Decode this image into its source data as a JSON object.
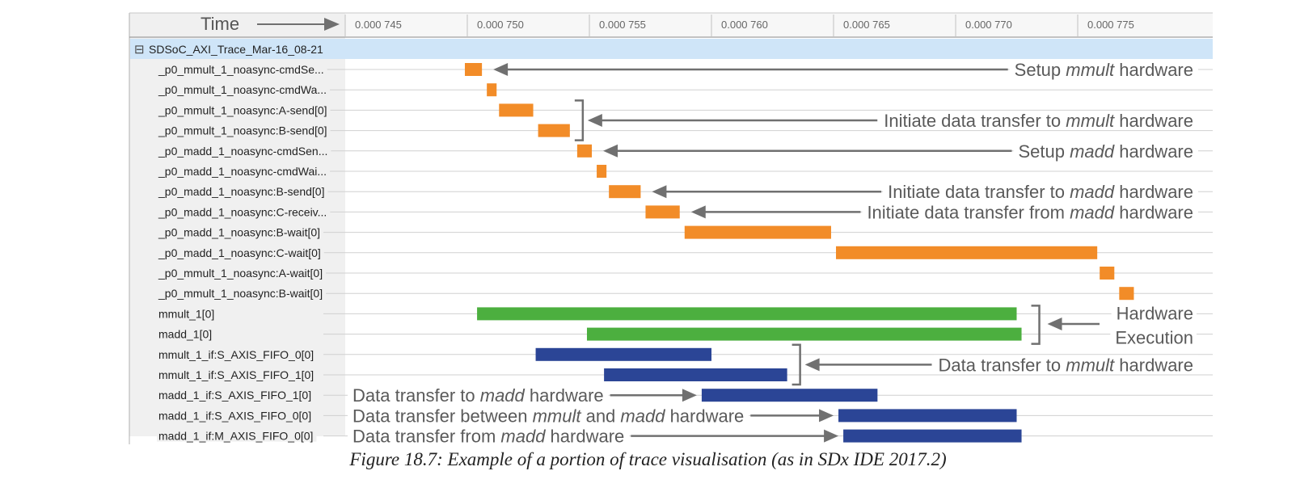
{
  "time_header": {
    "label": "Time",
    "ticks": [
      "0.000 745",
      "0.000 750",
      "0.000 755",
      "0.000 760",
      "0.000 765",
      "0.000 770",
      "0.000 775"
    ],
    "tick_values": [
      0.000745,
      0.00075,
      0.000755,
      0.00076,
      0.000765,
      0.00077,
      0.000775
    ]
  },
  "group": {
    "expander": "⊟",
    "label": "SDSoC_AXI_Trace_Mar-16_08-21"
  },
  "colors": {
    "software": "#F28C28",
    "hardware": "#4CAF3F",
    "dataflow": "#2B4596",
    "group_bg": "#CFE5F8",
    "label_bg": "#F0F0F0",
    "annotation": "#707070"
  },
  "rows": [
    {
      "label": "_p0_mmult_1_noasync-cmdSe...",
      "kind": "software",
      "start": 0.0007499,
      "end": 0.0007506
    },
    {
      "label": "_p0_mmult_1_noasync-cmdWa...",
      "kind": "software",
      "start": 0.0007508,
      "end": 0.0007512
    },
    {
      "label": "_p0_mmult_1_noasync:A-send[0]",
      "kind": "software",
      "start": 0.0007513,
      "end": 0.0007527
    },
    {
      "label": "_p0_mmult_1_noasync:B-send[0]",
      "kind": "software",
      "start": 0.0007529,
      "end": 0.0007542
    },
    {
      "label": "_p0_madd_1_noasync-cmdSen...",
      "kind": "software",
      "start": 0.0007545,
      "end": 0.0007551
    },
    {
      "label": "_p0_madd_1_noasync-cmdWai...",
      "kind": "software",
      "start": 0.0007553,
      "end": 0.0007557
    },
    {
      "label": "_p0_madd_1_noasync:B-send[0]",
      "kind": "software",
      "start": 0.0007558,
      "end": 0.0007571
    },
    {
      "label": "_p0_madd_1_noasync:C-receiv...",
      "kind": "software",
      "start": 0.0007573,
      "end": 0.0007587
    },
    {
      "label": "_p0_madd_1_noasync:B-wait[0]",
      "kind": "software",
      "start": 0.0007589,
      "end": 0.0007649
    },
    {
      "label": "_p0_madd_1_noasync:C-wait[0]",
      "kind": "software",
      "start": 0.0007651,
      "end": 0.0007758
    },
    {
      "label": "_p0_mmult_1_noasync:A-wait[0]",
      "kind": "software",
      "start": 0.0007759,
      "end": 0.0007765
    },
    {
      "label": "_p0_mmult_1_noasync:B-wait[0]",
      "kind": "software",
      "start": 0.0007767,
      "end": 0.0007773
    },
    {
      "label": "mmult_1[0]",
      "kind": "hardware",
      "start": 0.0007504,
      "end": 0.0007725
    },
    {
      "label": "madd_1[0]",
      "kind": "hardware",
      "start": 0.0007549,
      "end": 0.0007727
    },
    {
      "label": "mmult_1_if:S_AXIS_FIFO_0[0]",
      "kind": "dataflow",
      "start": 0.0007528,
      "end": 0.00076
    },
    {
      "label": "mmult_1_if:S_AXIS_FIFO_1[0]",
      "kind": "dataflow",
      "start": 0.0007556,
      "end": 0.0007631
    },
    {
      "label": "madd_1_if:S_AXIS_FIFO_1[0]",
      "kind": "dataflow",
      "start": 0.0007596,
      "end": 0.0007668
    },
    {
      "label": "madd_1_if:S_AXIS_FIFO_0[0]",
      "kind": "dataflow",
      "start": 0.0007652,
      "end": 0.0007725
    },
    {
      "label": "madd_1_if:M_AXIS_FIFO_0[0]",
      "kind": "dataflow",
      "start": 0.0007654,
      "end": 0.0007727
    }
  ],
  "annotations": [
    {
      "rows": [
        0
      ],
      "side": "right",
      "parts": [
        [
          "Setup ",
          false
        ],
        [
          "mmult",
          true
        ],
        [
          " hardware",
          false
        ]
      ]
    },
    {
      "rows": [
        2,
        3
      ],
      "side": "right",
      "parts": [
        [
          "Initiate data transfer to ",
          false
        ],
        [
          "mmult",
          true
        ],
        [
          " hardware",
          false
        ]
      ]
    },
    {
      "rows": [
        4
      ],
      "side": "right",
      "parts": [
        [
          "Setup ",
          false
        ],
        [
          "madd",
          true
        ],
        [
          " hardware",
          false
        ]
      ]
    },
    {
      "rows": [
        6
      ],
      "side": "right",
      "parts": [
        [
          "Initiate data transfer to ",
          false
        ],
        [
          "madd",
          true
        ],
        [
          " hardware",
          false
        ]
      ]
    },
    {
      "rows": [
        7
      ],
      "side": "right",
      "parts": [
        [
          "Initiate data transfer from ",
          false
        ],
        [
          "madd",
          true
        ],
        [
          " hardware",
          false
        ]
      ]
    },
    {
      "rows": [
        12,
        13
      ],
      "side": "right",
      "lines": [
        "Hardware",
        "Execution"
      ]
    },
    {
      "rows": [
        14,
        15
      ],
      "side": "right",
      "parts": [
        [
          "Data transfer to ",
          false
        ],
        [
          "mmult",
          true
        ],
        [
          " hardware",
          false
        ]
      ]
    },
    {
      "rows": [
        16
      ],
      "side": "left",
      "parts": [
        [
          "Data transfer to ",
          false
        ],
        [
          "madd",
          true
        ],
        [
          " hardware",
          false
        ]
      ]
    },
    {
      "rows": [
        17
      ],
      "side": "left",
      "parts": [
        [
          "Data transfer between ",
          false
        ],
        [
          "mmult",
          true
        ],
        [
          " and ",
          false
        ],
        [
          "madd",
          true
        ],
        [
          " hardware",
          false
        ]
      ]
    },
    {
      "rows": [
        18
      ],
      "side": "left",
      "parts": [
        [
          "Data transfer from ",
          false
        ],
        [
          "madd",
          true
        ],
        [
          " hardware",
          false
        ]
      ]
    }
  ],
  "caption": "Figure 18.7:  Example of a portion of trace visualisation (as in SDx IDE 2017.2)"
}
